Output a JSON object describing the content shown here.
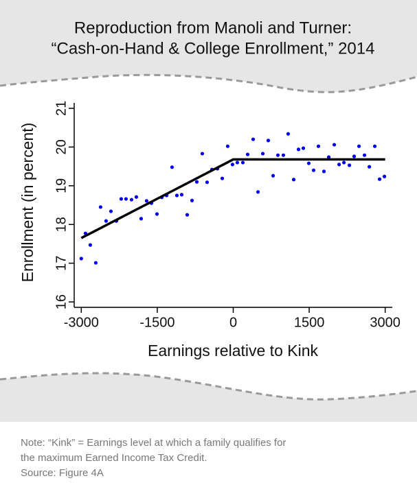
{
  "chart_data": {
    "type": "scatter",
    "title": [
      "Reproduction from Manoli and Turner:",
      "“Cash-on-Hand & College Enrollment,” 2014"
    ],
    "xlabel": "Earnings relative to Kink",
    "ylabel": "Enrollment (in percent)",
    "xlim": [
      -3140,
      3140
    ],
    "ylim": [
      15.86,
      21.14
    ],
    "xticks": [
      -3000,
      -1500,
      0,
      1500,
      3000
    ],
    "yticks": [
      16,
      17,
      18,
      19,
      20,
      21
    ],
    "color": "#0000ee",
    "x": [
      -3000,
      -2917,
      -2822,
      -2714,
      -2619,
      -2510,
      -2415,
      -2307,
      -2212,
      -2117,
      -2008,
      -1913,
      -1818,
      -1710,
      -1615,
      -1506,
      -1411,
      -1316,
      -1208,
      -1113,
      -1018,
      -909,
      -814,
      -719,
      -611,
      -516,
      -421,
      -312,
      -217,
      -109,
      -14,
      81,
      190,
      285,
      394,
      489,
      584,
      692,
      787,
      882,
      990,
      1085,
      1194,
      1289,
      1384,
      1492,
      1587,
      1682,
      1791,
      1886,
      1995,
      2090,
      2185,
      2293,
      2388,
      2483,
      2592,
      2687,
      2795,
      2890,
      2985
    ],
    "values": [
      17.12,
      17.77,
      17.47,
      17.01,
      18.45,
      18.09,
      18.34,
      18.09,
      18.66,
      18.66,
      18.64,
      18.71,
      18.15,
      18.61,
      18.55,
      18.27,
      18.7,
      18.75,
      19.48,
      18.75,
      18.77,
      18.25,
      18.62,
      19.1,
      19.83,
      19.09,
      19.42,
      19.44,
      19.19,
      20.02,
      19.55,
      19.6,
      19.6,
      19.81,
      20.2,
      18.84,
      19.83,
      20.17,
      19.26,
      19.79,
      19.79,
      20.34,
      19.16,
      19.94,
      19.97,
      19.58,
      19.4,
      20.02,
      19.37,
      19.74,
      20.06,
      19.55,
      19.6,
      19.53,
      19.76,
      20.02,
      19.79,
      19.49,
      20.02,
      19.17,
      19.24
    ],
    "fit_line": {
      "color": "#000000",
      "x": [
        -3000,
        0,
        3000
      ],
      "values": [
        17.65,
        19.68,
        19.68
      ]
    }
  },
  "note": [
    "Note: “Kink” = Earnings level at which a family qualifies for",
    "the maximum Earned Income Tax Credit.",
    "Source: Figure 4A"
  ]
}
